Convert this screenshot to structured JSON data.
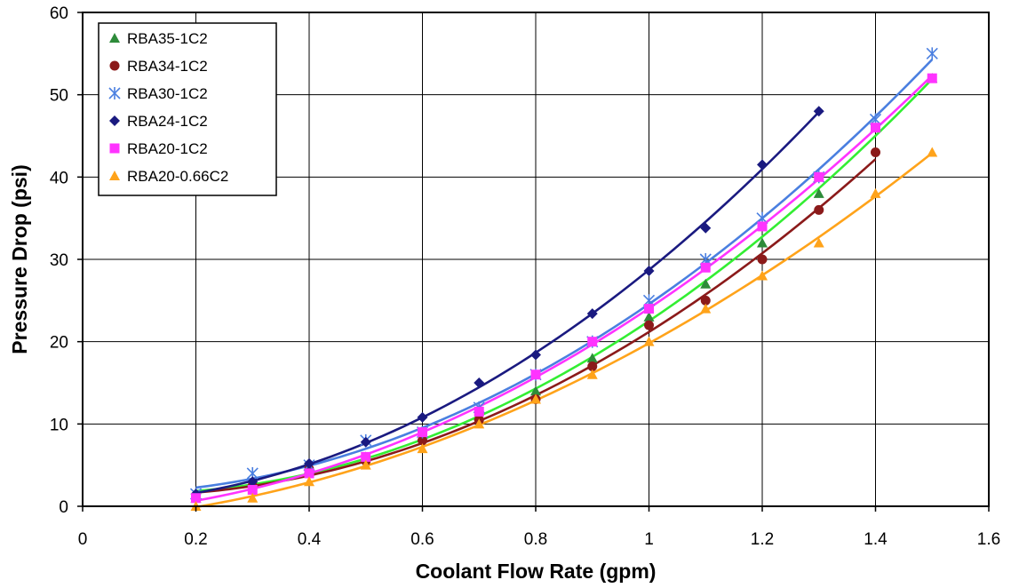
{
  "chart_data": {
    "type": "scatter",
    "title": "",
    "xlabel": "Coolant Flow Rate (gpm)",
    "ylabel": "Pressure Drop (psi)",
    "xlim": [
      0,
      1.6
    ],
    "ylim": [
      0,
      60
    ],
    "xticks": [
      "0",
      "0.2",
      "0.4",
      "0.6",
      "0.8",
      "1",
      "1.2",
      "1.4",
      "1.6"
    ],
    "yticks": [
      "0",
      "10",
      "20",
      "30",
      "40",
      "50",
      "60"
    ],
    "grid": true,
    "trendlines": true,
    "legend_position": "top-left",
    "series": [
      {
        "name": "RBA35-1C2",
        "marker": "triangle",
        "color": "#2e8b3a",
        "line_color": "#33ee33",
        "x": [
          0.2,
          0.3,
          0.4,
          0.5,
          0.6,
          0.7,
          0.8,
          0.9,
          1.0,
          1.1,
          1.2,
          1.3,
          1.4,
          1.5
        ],
        "y": [
          1,
          3,
          4.5,
          6,
          8.5,
          11,
          14,
          18,
          23,
          27,
          32,
          38,
          46,
          52
        ]
      },
      {
        "name": "RBA34-1C2",
        "marker": "circle",
        "color": "#8b1a1a",
        "line_color": "#8b1a1a",
        "x": [
          0.2,
          0.3,
          0.4,
          0.5,
          0.6,
          0.7,
          0.8,
          0.9,
          1.0,
          1.1,
          1.2,
          1.3,
          1.4
        ],
        "y": [
          1,
          2.5,
          4.5,
          5.5,
          8,
          10.5,
          13,
          17,
          22,
          25,
          30,
          36,
          43
        ]
      },
      {
        "name": "RBA30-1C2",
        "marker": "asterisk",
        "color": "#4a7fe0",
        "line_color": "#4a7fe0",
        "x": [
          0.2,
          0.3,
          0.4,
          0.5,
          0.6,
          0.7,
          0.8,
          0.9,
          1.0,
          1.1,
          1.2,
          1.3,
          1.4,
          1.5
        ],
        "y": [
          1.5,
          4,
          5,
          8,
          9,
          12,
          16,
          20,
          25,
          30,
          35,
          40,
          47,
          55
        ]
      },
      {
        "name": "RBA24-1C2",
        "marker": "diamond",
        "color": "#1a1a80",
        "line_color": "#1a1a80",
        "x": [
          0.2,
          0.3,
          0.4,
          0.5,
          0.6,
          0.7,
          0.8,
          0.9,
          1.0,
          1.1,
          1.2,
          1.3
        ],
        "y": [
          1.5,
          3,
          5.2,
          7.8,
          10.8,
          15,
          18.4,
          23.4,
          28.6,
          33.8,
          41.5,
          48
        ]
      },
      {
        "name": "RBA20-1C2",
        "marker": "square",
        "color": "#ff33ff",
        "line_color": "#ff33ff",
        "x": [
          0.2,
          0.3,
          0.4,
          0.5,
          0.6,
          0.7,
          0.8,
          0.9,
          1.0,
          1.1,
          1.2,
          1.3,
          1.4,
          1.5
        ],
        "y": [
          1,
          2,
          4,
          6,
          9,
          11.5,
          16,
          20,
          24,
          29,
          34,
          40,
          46,
          52
        ]
      },
      {
        "name": "RBA20-0.66C2",
        "marker": "triangle",
        "color": "#ffa31a",
        "line_color": "#ffa31a",
        "x": [
          0.2,
          0.3,
          0.4,
          0.5,
          0.6,
          0.7,
          0.8,
          0.9,
          1.0,
          1.1,
          1.2,
          1.3,
          1.4,
          1.5
        ],
        "y": [
          0,
          1,
          3,
          5,
          7,
          10,
          13,
          16,
          20,
          24,
          28,
          32,
          38,
          43
        ]
      }
    ]
  }
}
